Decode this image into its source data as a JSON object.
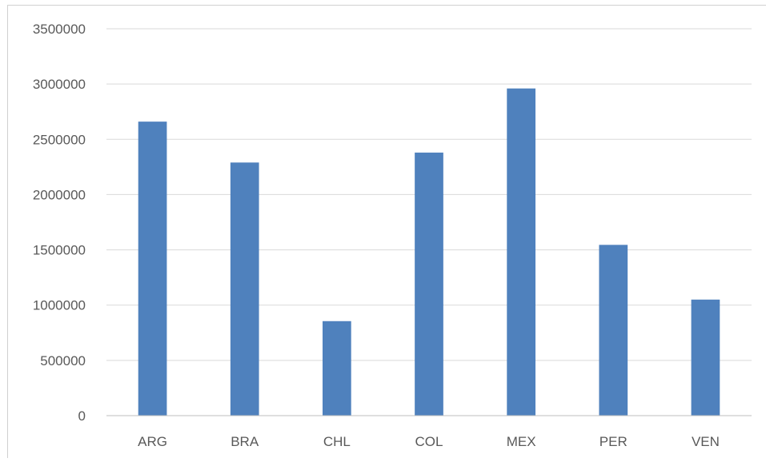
{
  "chart_data": {
    "type": "bar",
    "title": "",
    "xlabel": "",
    "ylabel": "",
    "categories": [
      "ARG",
      "BRA",
      "CHL",
      "COL",
      "MEX",
      "PER",
      "VEN"
    ],
    "values": [
      2660000,
      2290000,
      855000,
      2380000,
      2960000,
      1545000,
      1050000
    ],
    "ylim": [
      0,
      3500000
    ],
    "yticks": [
      "0",
      "500000",
      "1000000",
      "1500000",
      "2000000",
      "2500000",
      "3000000",
      "3500000"
    ],
    "grid": true,
    "legend": "none",
    "colors": {
      "bar": "#4f81bd",
      "grid": "#d9d9d9",
      "axis": "#bfbfbf",
      "text": "#595959",
      "title": "#2f5597"
    }
  }
}
